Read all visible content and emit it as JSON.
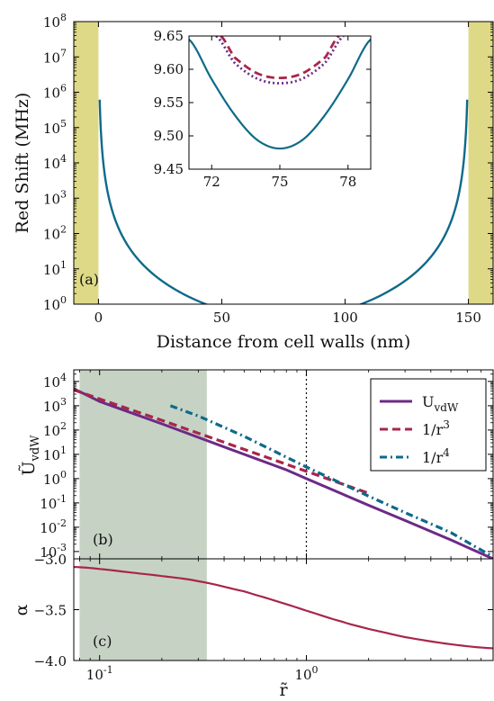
{
  "colors": {
    "teal": "#0e6a8a",
    "crimson": "#a8264a",
    "purple": "#6d2a86",
    "khaki": "#ded986",
    "sage": "#c6d3c4"
  },
  "chart_data": [
    {
      "id": "a",
      "type": "line",
      "panel_label": "(a)",
      "xlabel": "Distance from cell walls (nm)",
      "ylabel": "Red Shift (MHz)",
      "xlim": [
        -10,
        160
      ],
      "ylim": [
        1,
        100000000
      ],
      "yscale": "log",
      "xticks": [
        {
          "v": 0,
          "label": "0"
        },
        {
          "v": 50,
          "label": "50"
        },
        {
          "v": 100,
          "label": "100"
        },
        {
          "v": 150,
          "label": "150"
        }
      ],
      "yticks": [
        {
          "v": 1,
          "b": "10",
          "e": "0"
        },
        {
          "v": 10,
          "b": "10",
          "e": "1"
        },
        {
          "v": 100,
          "b": "10",
          "e": "2"
        },
        {
          "v": 1000,
          "b": "10",
          "e": "3"
        },
        {
          "v": 10000,
          "b": "10",
          "e": "4"
        },
        {
          "v": 100000,
          "b": "10",
          "e": "5"
        },
        {
          "v": 1000000,
          "b": "10",
          "e": "6"
        },
        {
          "v": 10000000,
          "b": "10",
          "e": "7"
        },
        {
          "v": 100000000,
          "b": "10",
          "e": "8"
        }
      ],
      "shaded_regions": [
        [
          -10,
          0
        ],
        [
          150,
          160
        ]
      ],
      "series": [
        {
          "color": "teal",
          "model": "walls",
          "C": 77.0,
          "x_range": [
            0.5,
            149.5
          ]
        }
      ],
      "inset": {
        "xlim": [
          71,
          79
        ],
        "ylim": [
          9.45,
          9.65
        ],
        "xticks": [
          {
            "v": 72,
            "label": "72"
          },
          {
            "v": 75,
            "label": "75"
          },
          {
            "v": 78,
            "label": "78"
          }
        ],
        "yticks": [
          {
            "v": 9.45,
            "label": "9.45"
          },
          {
            "v": 9.5,
            "label": "9.50"
          },
          {
            "v": 9.55,
            "label": "9.55"
          },
          {
            "v": 9.6,
            "label": "9.60"
          },
          {
            "v": 9.65,
            "label": "9.65"
          }
        ],
        "series": [
          {
            "color": "teal",
            "style": "solid",
            "x": [
              71,
              72,
              73,
              74,
              75,
              76,
              77,
              78,
              79
            ],
            "y": [
              9.645,
              9.585,
              9.532,
              9.494,
              9.481,
              9.494,
              9.532,
              9.585,
              9.645
            ]
          },
          {
            "color": "crimson",
            "style": "dashed",
            "x": [
              72.4,
              73,
              74,
              75,
              76,
              77,
              77.6
            ],
            "y": [
              9.65,
              9.618,
              9.594,
              9.587,
              9.594,
              9.618,
              9.65
            ]
          },
          {
            "color": "purple",
            "style": "dotted",
            "x": [
              72.2,
              73,
              74,
              75,
              76,
              77,
              77.8
            ],
            "y": [
              9.65,
              9.61,
              9.586,
              9.579,
              9.586,
              9.61,
              9.65
            ]
          }
        ]
      }
    },
    {
      "id": "b",
      "type": "line",
      "panel_label": "(b)",
      "xlabel": "",
      "ylabel": "Ũ",
      "ylabel_sub": "vdW",
      "xscale": "log",
      "yscale": "log",
      "xlim": [
        0.075,
        8.0
      ],
      "ylim": [
        0.0005,
        30000
      ],
      "yticks": [
        {
          "v": 0.001,
          "b": "10",
          "e": "-3"
        },
        {
          "v": 0.01,
          "b": "10",
          "e": "-2"
        },
        {
          "v": 0.1,
          "b": "10",
          "e": "-1"
        },
        {
          "v": 1,
          "b": "10",
          "e": "0"
        },
        {
          "v": 10,
          "b": "10",
          "e": "1"
        },
        {
          "v": 100,
          "b": "10",
          "e": "2"
        },
        {
          "v": 1000,
          "b": "10",
          "e": "3"
        },
        {
          "v": 10000,
          "b": "10",
          "e": "4"
        }
      ],
      "shaded_region": [
        0.08,
        0.33
      ],
      "vline": 1.0,
      "legend_position": "top-right",
      "series": [
        {
          "name": "U",
          "name_sub": "vdW",
          "name_sup": "",
          "color": "purple",
          "style": "solid",
          "x": [
            0.075,
            0.1,
            0.2,
            0.3,
            0.5,
            0.8,
            1,
            2,
            3,
            5,
            8
          ],
          "y": [
            5000,
            1500,
            180,
            50,
            10,
            2.3,
            1.0,
            0.08,
            0.019,
            0.003,
            0.0005
          ]
        },
        {
          "name": "1/r",
          "name_sub": "",
          "name_sup": "3",
          "color": "crimson",
          "style": "dashed",
          "x": [
            0.075,
            0.1,
            0.2,
            0.5,
            1,
            2
          ],
          "y": [
            4500,
            1900,
            250,
            16,
            2.0,
            0.25
          ]
        },
        {
          "name": "1/r",
          "name_sub": "",
          "name_sup": "4",
          "color": "teal",
          "style": "dashdot",
          "x": [
            0.22,
            0.3,
            0.5,
            1,
            2,
            3,
            5,
            8
          ],
          "y": [
            1000,
            380,
            55,
            3.0,
            0.19,
            0.04,
            0.006,
            0.0006
          ]
        }
      ]
    },
    {
      "id": "c",
      "type": "line",
      "panel_label": "(c)",
      "xlabel": "r̃",
      "ylabel": "α",
      "xscale": "log",
      "xlim": [
        0.075,
        8.0
      ],
      "ylim": [
        -4.0,
        -3.0
      ],
      "xticks": [
        {
          "v": 0.1,
          "b": "10",
          "e": "-1"
        },
        {
          "v": 1,
          "b": "10",
          "e": "0"
        }
      ],
      "yticks": [
        {
          "v": -3.0,
          "label": "−3.0"
        },
        {
          "v": -3.5,
          "label": "−3.5"
        },
        {
          "v": -4.0,
          "label": "−4.0"
        }
      ],
      "shaded_region": [
        0.08,
        0.33
      ],
      "series": [
        {
          "color": "crimson",
          "style": "solid",
          "x": [
            0.075,
            0.1,
            0.15,
            0.2,
            0.3,
            0.5,
            0.7,
            1,
            1.5,
            2,
            3,
            5,
            8
          ],
          "y": [
            -3.08,
            -3.1,
            -3.14,
            -3.17,
            -3.22,
            -3.32,
            -3.41,
            -3.51,
            -3.62,
            -3.69,
            -3.77,
            -3.84,
            -3.88
          ]
        }
      ]
    }
  ]
}
